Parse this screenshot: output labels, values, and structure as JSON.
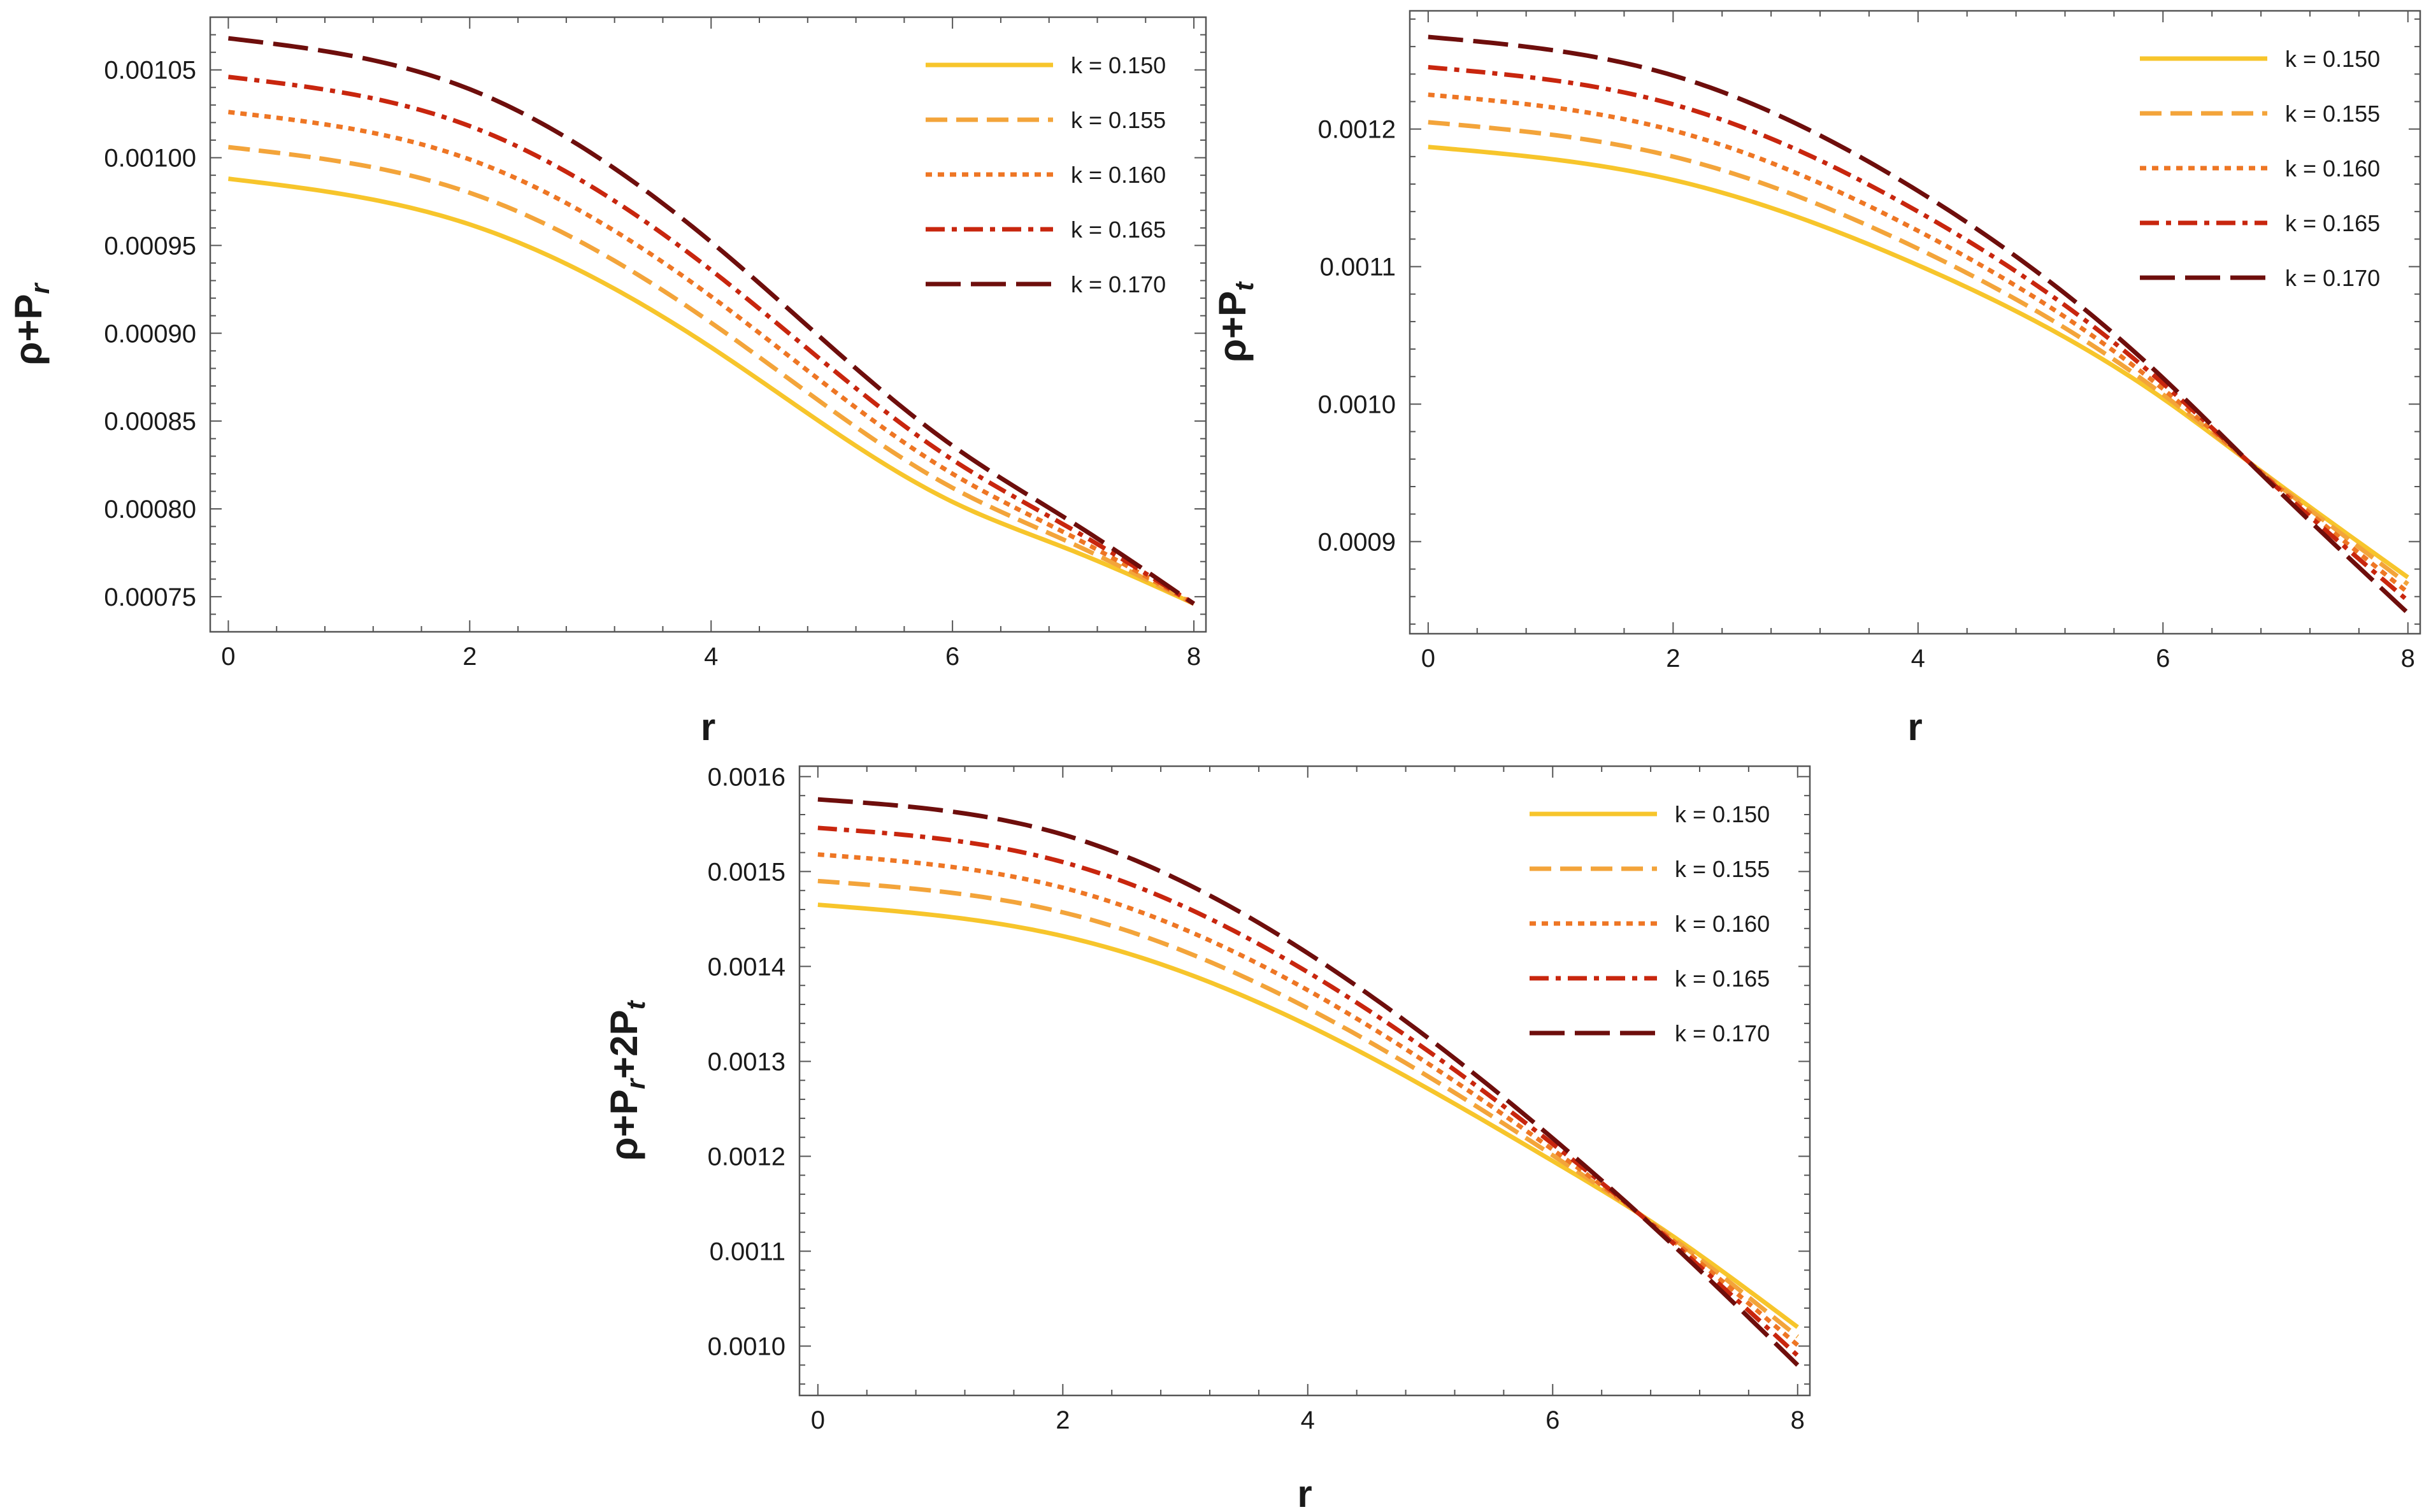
{
  "figure": {
    "panels": [
      "rho_pr",
      "rho_pt",
      "rho_sum"
    ]
  },
  "legend": {
    "entries": [
      {
        "label": "k = 0.150",
        "color": "#F7C52B",
        "dash": "solid"
      },
      {
        "label": "k = 0.155",
        "color": "#F3A43A",
        "dash": "dashed"
      },
      {
        "label": "k = 0.160",
        "color": "#EE7624",
        "dash": "dotted"
      },
      {
        "label": "k = 0.165",
        "color": "#C8260E",
        "dash": "dashdot"
      },
      {
        "label": "k = 0.170",
        "color": "#6E0E0C",
        "dash": "longdash"
      }
    ]
  },
  "chart_data": [
    {
      "id": "rho_pr",
      "type": "line",
      "xlabel": "r",
      "ylabel": {
        "base": "ρ+P",
        "sub": "r",
        "tail": ""
      },
      "xlim": [
        -0.15,
        8.1
      ],
      "ylim": [
        0.00073,
        0.00108
      ],
      "xticks": [
        0,
        2,
        4,
        6,
        8
      ],
      "xtick_labels": [
        "0",
        "2",
        "4",
        "6",
        "8"
      ],
      "yticks": [
        0.00075,
        0.0008,
        0.00085,
        0.0009,
        0.00095,
        0.001,
        0.00105
      ],
      "ytick_labels": [
        "0.00075",
        "0.00080",
        "0.00085",
        "0.00090",
        "0.00095",
        "0.00100",
        "0.00105"
      ],
      "legend_position": "top-right",
      "x": [
        0,
        2,
        4,
        6,
        7,
        8
      ],
      "series": [
        {
          "name": "k = 0.150",
          "values": [
            0.000988,
            0.000962,
            0.000892,
            0.000804,
            0.000776,
            0.000746
          ]
        },
        {
          "name": "k = 0.155",
          "values": [
            0.001006,
            0.00098,
            0.000906,
            0.000812,
            0.00078,
            0.000746
          ]
        },
        {
          "name": "k = 0.160",
          "values": [
            0.001026,
            0.000999,
            0.000921,
            0.00082,
            0.000784,
            0.000746
          ]
        },
        {
          "name": "k = 0.165",
          "values": [
            0.001046,
            0.001018,
            0.000936,
            0.000828,
            0.000788,
            0.000746
          ]
        },
        {
          "name": "k = 0.170",
          "values": [
            0.001068,
            0.001039,
            0.000952,
            0.000836,
            0.000792,
            0.000746
          ]
        }
      ]
    },
    {
      "id": "rho_pt",
      "type": "line",
      "xlabel": "r",
      "ylabel": {
        "base": "ρ+P",
        "sub": "t",
        "tail": ""
      },
      "xlim": [
        -0.15,
        8.1
      ],
      "ylim": [
        0.000833,
        0.001286
      ],
      "xticks": [
        0,
        2,
        4,
        6,
        8
      ],
      "xtick_labels": [
        "0",
        "2",
        "4",
        "6",
        "8"
      ],
      "yticks": [
        0.0009,
        0.001,
        0.0011,
        0.0012
      ],
      "ytick_labels": [
        "0.0009",
        "0.0010",
        "0.0011",
        "0.0012"
      ],
      "legend_position": "top-right",
      "x": [
        0,
        2,
        4,
        6,
        6.7,
        8
      ],
      "series": [
        {
          "name": "k = 0.150",
          "values": [
            0.001187,
            0.001163,
            0.001101,
            0.001004,
            0.000958,
            0.000874
          ]
        },
        {
          "name": "k = 0.155",
          "values": [
            0.001205,
            0.00118,
            0.001113,
            0.001007,
            0.000958,
            0.000869
          ]
        },
        {
          "name": "k = 0.160",
          "values": [
            0.001225,
            0.001199,
            0.001126,
            0.001011,
            0.000958,
            0.000863
          ]
        },
        {
          "name": "k = 0.165",
          "values": [
            0.001245,
            0.001218,
            0.00114,
            0.001015,
            0.000958,
            0.000857
          ]
        },
        {
          "name": "k = 0.170",
          "values": [
            0.001267,
            0.001239,
            0.001155,
            0.001019,
            0.000958,
            0.000848
          ]
        }
      ]
    },
    {
      "id": "rho_sum",
      "type": "line",
      "xlabel": "r",
      "ylabel": {
        "base": "ρ+P",
        "sub": "r",
        "tail": "+2P",
        "sub2": "t"
      },
      "xlim": [
        -0.15,
        8.1
      ],
      "ylim": [
        0.000948,
        0.001611
      ],
      "xticks": [
        0,
        2,
        4,
        6,
        8
      ],
      "xtick_labels": [
        "0",
        "2",
        "4",
        "6",
        "8"
      ],
      "yticks": [
        0.001,
        0.0011,
        0.0012,
        0.0013,
        0.0014,
        0.0015,
        0.0016
      ],
      "ytick_labels": [
        "0.0010",
        "0.0011",
        "0.0012",
        "0.0013",
        "0.0014",
        "0.0015",
        "0.0016"
      ],
      "legend_position": "top-right",
      "x": [
        0,
        2,
        4,
        6,
        6.7,
        8
      ],
      "series": [
        {
          "name": "k = 0.150",
          "values": [
            0.001465,
            0.001432,
            0.001338,
            0.001195,
            0.00114,
            0.00102
          ]
        },
        {
          "name": "k = 0.155",
          "values": [
            0.00149,
            0.001457,
            0.001356,
            0.001201,
            0.00114,
            0.00101
          ]
        },
        {
          "name": "k = 0.160",
          "values": [
            0.001518,
            0.001483,
            0.001375,
            0.001207,
            0.00114,
            0.001001
          ]
        },
        {
          "name": "k = 0.165",
          "values": [
            0.001546,
            0.00151,
            0.001394,
            0.001213,
            0.00114,
            0.00099
          ]
        },
        {
          "name": "k = 0.170",
          "values": [
            0.001576,
            0.001539,
            0.001414,
            0.001219,
            0.00114,
            0.00098
          ]
        }
      ]
    }
  ]
}
